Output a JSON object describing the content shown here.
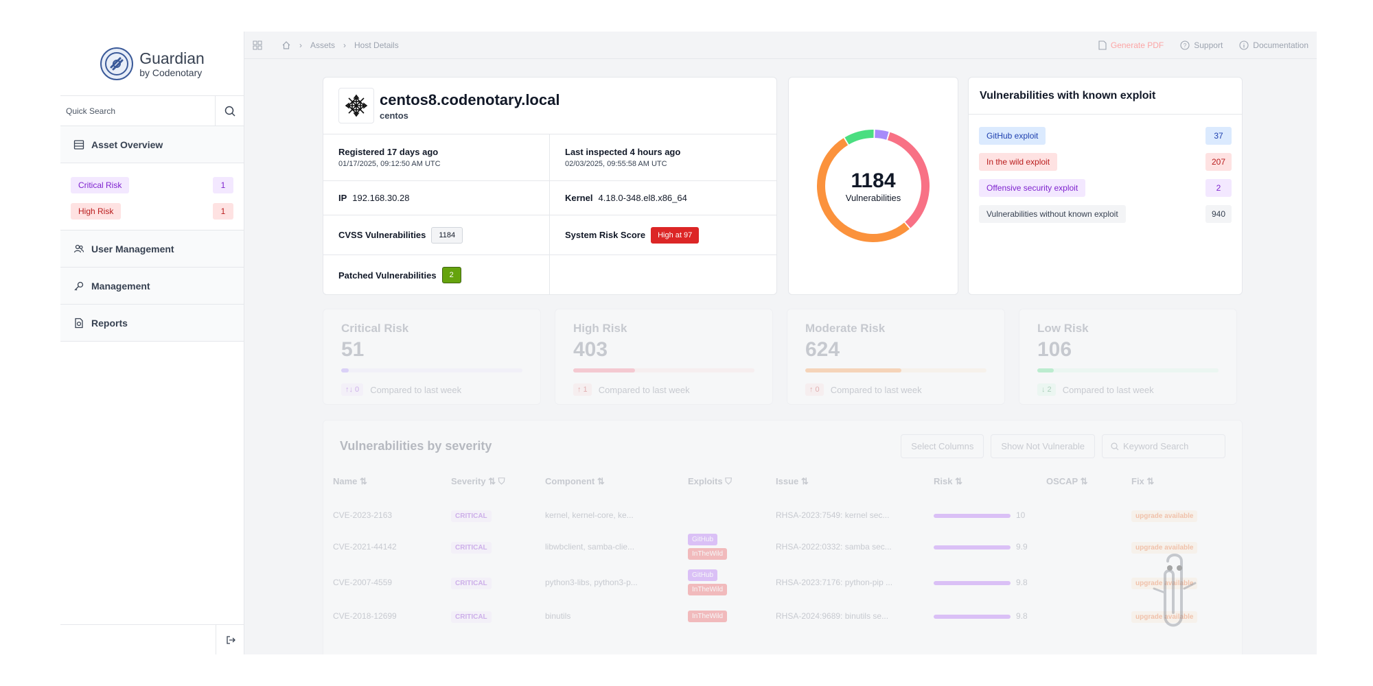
{
  "brand": {
    "name": "Guardian",
    "sub": "by Codenotary"
  },
  "search": {
    "placeholder": "Quick Search"
  },
  "nav": {
    "asset_overview": "Asset Overview",
    "user_management": "User Management",
    "management": "Management",
    "reports": "Reports"
  },
  "risk_filters": [
    {
      "label": "Critical Risk",
      "count": "1"
    },
    {
      "label": "High Risk",
      "count": "1"
    }
  ],
  "breadcrumb": {
    "assets": "Assets",
    "current": "Host Details"
  },
  "top_actions": {
    "pdf": "Generate PDF",
    "support": "Support",
    "docs": "Documentation"
  },
  "host": {
    "name": "centos8.codenotary.local",
    "os": "centos",
    "registered_label": "Registered 17 days ago",
    "registered_date": "01/17/2025, 09:12:50 AM UTC",
    "inspected_label": "Last inspected 4 hours ago",
    "inspected_date": "02/03/2025, 09:55:58 AM UTC",
    "ip_label": "IP",
    "ip_value": "192.168.30.28",
    "kernel_label": "Kernel",
    "kernel_value": "4.18.0-348.el8.x86_64",
    "cvss_label": "CVSS Vulnerabilities",
    "cvss_value": "1184",
    "risk_label": "System Risk Score",
    "risk_value": "High at 97",
    "patched_label": "Patched Vulnerabilities",
    "patched_value": "2"
  },
  "donut": {
    "total": "1184",
    "label": "Vulnerabilities",
    "segments": [
      {
        "name": "critical",
        "value": 51,
        "color": "#a78bfa"
      },
      {
        "name": "high",
        "value": 403,
        "color": "#f87185"
      },
      {
        "name": "moderate",
        "value": 624,
        "color": "#fb923c"
      },
      {
        "name": "low",
        "value": 106,
        "color": "#4ade80"
      }
    ]
  },
  "exploits": {
    "title": "Vulnerabilities with known exploit",
    "items": [
      {
        "label": "GitHub exploit",
        "count": "37"
      },
      {
        "label": "In the wild exploit",
        "count": "207"
      },
      {
        "label": "Offensive security exploit",
        "count": "2"
      },
      {
        "label": "Vulnerabilities without known exploit",
        "count": "940"
      }
    ]
  },
  "stats": [
    {
      "title": "Critical Risk",
      "value": "51",
      "delta": "↑↓ 0",
      "foot": "Compared to last week",
      "fill": 0.04,
      "color": "#a78bfa",
      "track": "#ede9fe"
    },
    {
      "title": "High Risk",
      "value": "403",
      "delta": "↑ 1",
      "foot": "Compared to last week",
      "fill": 0.34,
      "color": "#f87185",
      "track": "#fee2e2"
    },
    {
      "title": "Moderate Risk",
      "value": "624",
      "delta": "↑ 0",
      "foot": "Compared to last week",
      "fill": 0.53,
      "color": "#fb923c",
      "track": "#ffedd5"
    },
    {
      "title": "Low Risk",
      "value": "106",
      "delta": "↓ 2",
      "foot": "Compared to last week",
      "fill": 0.09,
      "color": "#4ade80",
      "track": "#dcfce7"
    }
  ],
  "table": {
    "title": "Vulnerabilities by severity",
    "select_columns": "Select Columns",
    "show_not_vulnerable": "Show Not Vulnerable",
    "keyword_placeholder": "Keyword Search",
    "columns": [
      "Name",
      "Severity",
      "Component",
      "Exploits",
      "Issue",
      "Risk",
      "OSCAP",
      "Fix"
    ],
    "rows": [
      {
        "name": "CVE-2023-2163",
        "severity": "CRITICAL",
        "component": "kernel, kernel-core, ke...",
        "exploits": [],
        "issue": "RHSA-2023:7549: kernel sec...",
        "risk": "10",
        "fix": "upgrade available"
      },
      {
        "name": "CVE-2021-44142",
        "severity": "CRITICAL",
        "component": "libwbclient, samba-clie...",
        "exploits": [
          "GitHub",
          "InTheWild"
        ],
        "issue": "RHSA-2022:0332: samba sec...",
        "risk": "9.9",
        "fix": "upgrade available"
      },
      {
        "name": "CVE-2007-4559",
        "severity": "CRITICAL",
        "component": "python3-libs, python3-p...",
        "exploits": [
          "GitHub",
          "InTheWild"
        ],
        "issue": "RHSA-2023:7176: python-pip ...",
        "risk": "9.8",
        "fix": "upgrade available"
      },
      {
        "name": "CVE-2018-12699",
        "severity": "CRITICAL",
        "component": "binutils",
        "exploits": [
          "InTheWild"
        ],
        "issue": "RHSA-2024:9689: binutils se...",
        "risk": "9.8",
        "fix": "upgrade available"
      }
    ]
  }
}
